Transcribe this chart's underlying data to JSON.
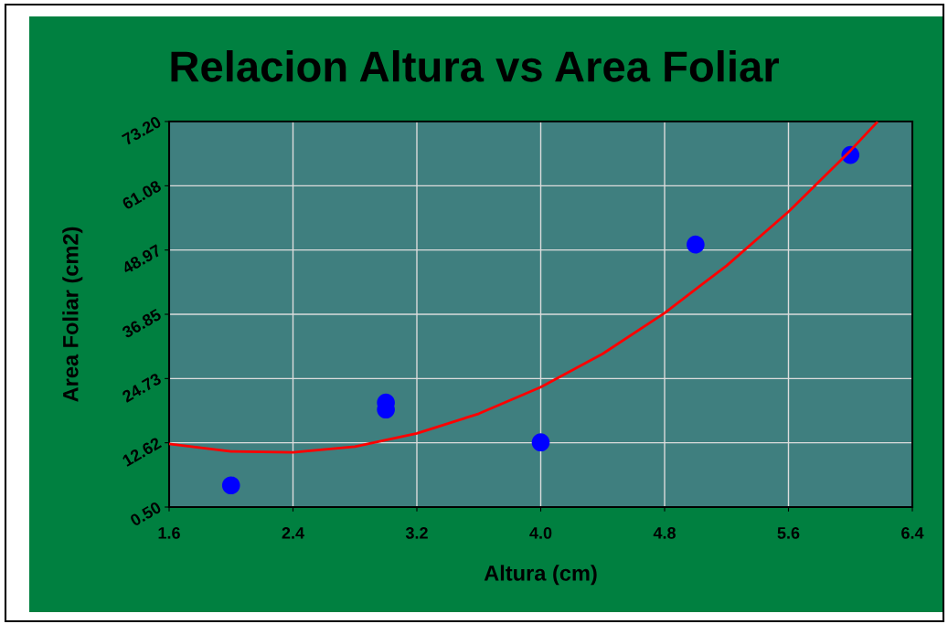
{
  "chart_data": {
    "type": "scatter",
    "title": "Relacion Altura vs Area Foliar",
    "xlabel": "Altura (cm)",
    "ylabel": "Area Foliar (cm2)",
    "xlim": [
      1.6,
      6.4
    ],
    "ylim": [
      0.5,
      73.2
    ],
    "xticks": [
      1.6,
      2.4,
      3.2,
      {
        "value": 4.0,
        "label": "4.0"
      },
      4.8,
      5.6,
      6.4
    ],
    "yticks": [
      {
        "value": 0.5,
        "label": "0.50"
      },
      12.62,
      24.73,
      36.85,
      48.97,
      61.08,
      {
        "value": 73.2,
        "label": "73.20"
      }
    ],
    "grid": true,
    "marker": "circle",
    "series": [
      {
        "color": "#0000ff",
        "x": [
          2.0,
          3.0,
          3.0,
          4.0,
          5.0,
          6.0
        ],
        "values": [
          4.6,
          20.2,
          18.9,
          12.7,
          50.0,
          66.9
        ]
      },
      {
        "type": "line",
        "color": "#ff0000",
        "marker": "none",
        "x": [
          1.6,
          2.0,
          2.4,
          2.8,
          3.2,
          3.6,
          4.0,
          4.4,
          4.8,
          5.2,
          5.6,
          6.0,
          6.17
        ],
        "values": [
          12.4,
          11.0,
          10.8,
          11.9,
          14.4,
          18.1,
          23.1,
          29.4,
          37.1,
          46.0,
          56.2,
          67.7,
          73.0
        ]
      }
    ]
  }
}
